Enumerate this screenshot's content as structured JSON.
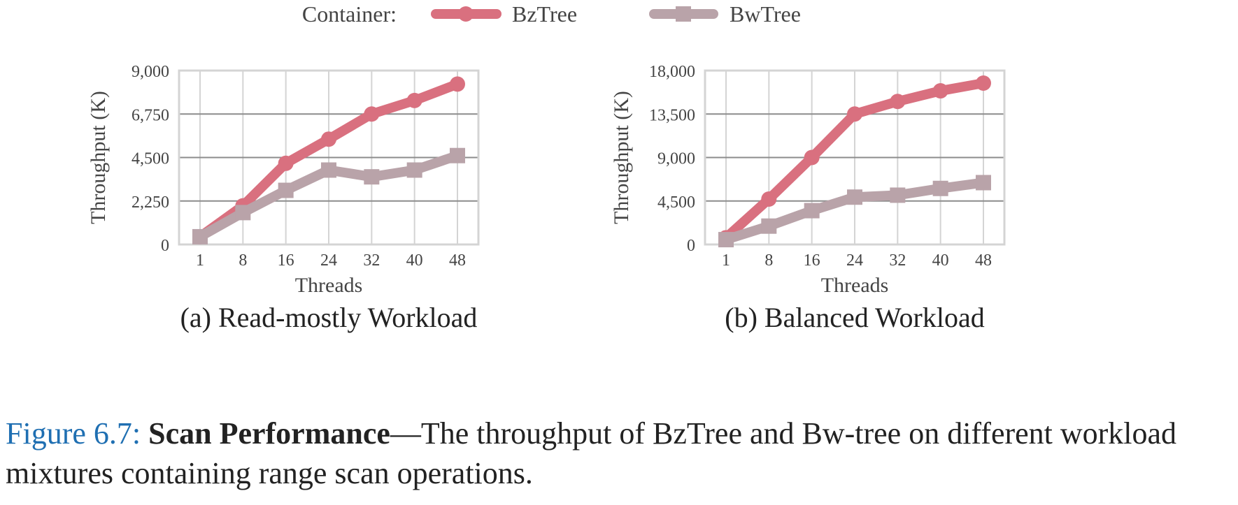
{
  "legend": {
    "title": "Container:",
    "items": [
      {
        "label": "BzTree",
        "color": "#d9707f",
        "marker": "circle"
      },
      {
        "label": "BwTree",
        "color": "#b9a3a9",
        "marker": "square"
      }
    ]
  },
  "chart_data": [
    {
      "type": "line",
      "subtitle": "(a) Read-mostly Workload",
      "xlabel": "Threads",
      "ylabel": "Throughput (K)",
      "categories": [
        "1",
        "8",
        "16",
        "24",
        "32",
        "40",
        "48"
      ],
      "yticks": [
        "0",
        "2,250",
        "4,500",
        "6,750",
        "9,000"
      ],
      "ylim": [
        0,
        9000
      ],
      "grid": true,
      "series": [
        {
          "name": "BzTree",
          "values": [
            400,
            2000,
            4200,
            5450,
            6750,
            7450,
            8300
          ]
        },
        {
          "name": "BwTree",
          "values": [
            400,
            1650,
            2800,
            3850,
            3500,
            3850,
            4600
          ]
        }
      ]
    },
    {
      "type": "line",
      "subtitle": "(b) Balanced Workload",
      "xlabel": "Threads",
      "ylabel": "Throughput (K)",
      "categories": [
        "1",
        "8",
        "16",
        "24",
        "32",
        "40",
        "48"
      ],
      "yticks": [
        "0",
        "4,500",
        "9,000",
        "13,500",
        "18,000"
      ],
      "ylim": [
        0,
        18000
      ],
      "grid": true,
      "series": [
        {
          "name": "BzTree",
          "values": [
            700,
            4700,
            9000,
            13500,
            14800,
            15900,
            16700
          ]
        },
        {
          "name": "BwTree",
          "values": [
            500,
            1900,
            3500,
            4900,
            5100,
            5800,
            6400
          ]
        }
      ]
    }
  ],
  "caption": {
    "label": "Figure 6.7:",
    "bold": "Scan Performance",
    "text": "—The throughput of BzTree and Bw-tree on different workload mixtures containing range scan operations."
  }
}
